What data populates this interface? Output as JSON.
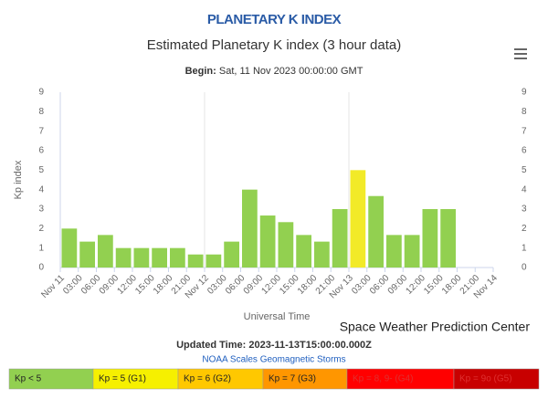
{
  "header": "PLANETARY K INDEX",
  "chart_data": {
    "type": "bar",
    "title": "Estimated Planetary K index (3 hour data)",
    "subtitle_label": "Begin:",
    "subtitle": "Sat, 11 Nov 2023 00:00:00 GMT",
    "y_label": "Kp index",
    "x_label": "Universal Time",
    "xticks": [
      "Nov 11",
      "03:00",
      "06:00",
      "09:00",
      "12:00",
      "15:00",
      "18:00",
      "21:00",
      "Nov 12",
      "03:00",
      "06:00",
      "09:00",
      "12:00",
      "15:00",
      "18:00",
      "21:00",
      "Nov 13",
      "03:00",
      "06:00",
      "09:00",
      "12:00",
      "15:00",
      "18:00",
      "21:00",
      "Nov 14"
    ],
    "values": [
      2,
      1.33,
      1.67,
      1,
      1,
      1,
      1,
      0.67,
      0.67,
      1.33,
      4,
      2.67,
      2.33,
      1.67,
      1.33,
      3,
      5,
      3.67,
      1.67,
      1.67,
      3,
      3
    ],
    "colors": [
      "#92d050",
      "#92d050",
      "#92d050",
      "#92d050",
      "#92d050",
      "#92d050",
      "#92d050",
      "#92d050",
      "#92d050",
      "#92d050",
      "#92d050",
      "#92d050",
      "#92d050",
      "#92d050",
      "#92d050",
      "#92d050",
      "#f2ea28",
      "#92d050",
      "#92d050",
      "#92d050",
      "#92d050",
      "#92d050"
    ],
    "ylim": [
      0,
      9
    ],
    "yticks": [
      0,
      1,
      2,
      3,
      4,
      5,
      6,
      7,
      8,
      9
    ],
    "credits": "Space Weather Prediction Center"
  },
  "updated": "Updated Time: 2023-11-13T15:00:00.000Z",
  "scales_link": "NOAA Scales Geomagnetic Storms",
  "legend": [
    {
      "label": "Kp < 5",
      "color": "#92d050"
    },
    {
      "label": "Kp = 5 (G1)",
      "color": "#f6f000"
    },
    {
      "label": "Kp = 6 (G2)",
      "color": "#ffc800"
    },
    {
      "label": "Kp = 7 (G3)",
      "color": "#ff9600"
    },
    {
      "label": "Kp = 8, 9- (G4)",
      "color": "#ff0000"
    },
    {
      "label": "Kp = 9o (G5)",
      "color": "#c80000"
    }
  ]
}
